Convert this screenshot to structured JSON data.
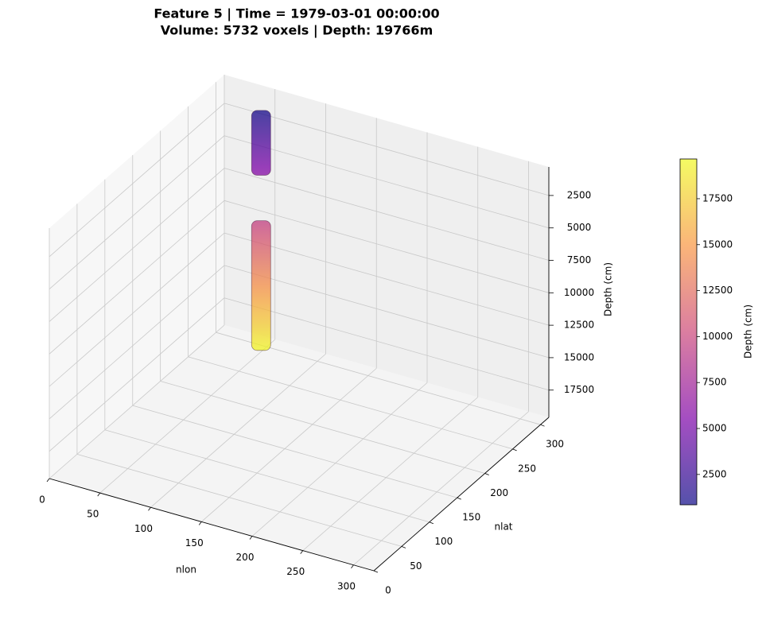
{
  "chart_data": {
    "type": "isosurface3d",
    "title": "Feature 5 | Time = 1979-03-01 00:00:00",
    "subtitle": "Volume: 5732 voxels | Depth: 19766m",
    "xlabel": "nlon",
    "ylabel": "nlat",
    "zlabel": "Depth (cm)",
    "xlim": [
      0,
      320
    ],
    "xticks": [
      0,
      50,
      100,
      150,
      200,
      250,
      300
    ],
    "ylim": [
      0,
      315
    ],
    "yticks": [
      0,
      50,
      100,
      150,
      200,
      250,
      300
    ],
    "zlim": [
      19600,
      300
    ],
    "zticks": [
      2500,
      5000,
      7500,
      10000,
      12500,
      15000,
      17500
    ],
    "grid": true,
    "bodies": [
      {
        "x": 50,
        "y": 290,
        "z": [
          1000,
          6000
        ]
      },
      {
        "x": 50,
        "y": 290,
        "z": [
          9500,
          19500
        ]
      }
    ],
    "colorbar": {
      "label": "Depth (cm)",
      "colormap": [
        "#0d0887",
        "#7e03a8",
        "#cc4778",
        "#f89540",
        "#f0f921"
      ],
      "lim": [
        850,
        19660
      ],
      "ticks": [
        2500,
        5000,
        7500,
        10000,
        12500,
        15000,
        17500
      ]
    }
  }
}
